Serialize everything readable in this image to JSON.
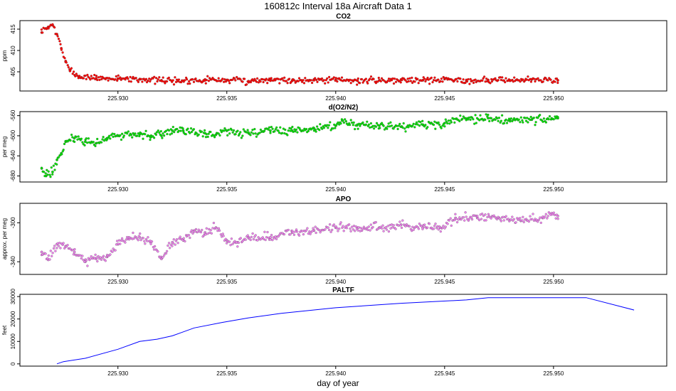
{
  "title": "160812c   Interval 18a Aircraft Data 1",
  "xlabel": "day of year",
  "chart_data": [
    {
      "type": "scatter",
      "title": "CO2",
      "ylabel": "ppm",
      "color": "#ff0000",
      "xlim": [
        225.9255,
        225.9552
      ],
      "ylim": [
        400.5,
        417
      ],
      "xticks": [
        "225.930",
        "225.935",
        "225.940",
        "225.945",
        "225.950"
      ],
      "yticks": [
        "405",
        "410",
        "415"
      ],
      "points": [
        [
          225.9265,
          414.2
        ],
        [
          225.9268,
          415.5
        ],
        [
          225.927,
          416.0
        ],
        [
          225.9272,
          413.8
        ],
        [
          225.9274,
          410.5
        ],
        [
          225.9276,
          407.5
        ],
        [
          225.9278,
          405.2
        ],
        [
          225.9282,
          403.9
        ],
        [
          225.929,
          403.5
        ],
        [
          225.93,
          403.4
        ],
        [
          225.931,
          403.3
        ],
        [
          225.932,
          403.0
        ],
        [
          225.933,
          402.9
        ],
        [
          225.934,
          403.2
        ],
        [
          225.935,
          403.1
        ],
        [
          225.936,
          402.8
        ],
        [
          225.937,
          403.3
        ],
        [
          225.938,
          402.9
        ],
        [
          225.939,
          403.2
        ],
        [
          225.94,
          403.1
        ],
        [
          225.941,
          402.9
        ],
        [
          225.942,
          403.0
        ],
        [
          225.943,
          403.2
        ],
        [
          225.944,
          403.0
        ],
        [
          225.945,
          403.3
        ],
        [
          225.946,
          402.9
        ],
        [
          225.947,
          403.1
        ],
        [
          225.948,
          403.0
        ],
        [
          225.949,
          403.2
        ],
        [
          225.9502,
          403.0
        ]
      ]
    },
    {
      "type": "scatter",
      "title": "d(O2/N2)",
      "ylabel": "per meg",
      "color": "#00e000",
      "xlim": [
        225.9255,
        225.9552
      ],
      "ylim": [
        -692,
        -552
      ],
      "xticks": [
        "225.930",
        "225.935",
        "225.940",
        "225.945",
        "225.950"
      ],
      "yticks": [
        "-680",
        "-640",
        "-600",
        "-560"
      ],
      "points": [
        [
          225.9265,
          -665
        ],
        [
          225.9267,
          -680
        ],
        [
          225.927,
          -672
        ],
        [
          225.9272,
          -648
        ],
        [
          225.9274,
          -635
        ],
        [
          225.9276,
          -612
        ],
        [
          225.928,
          -605
        ],
        [
          225.9285,
          -612
        ],
        [
          225.929,
          -615
        ],
        [
          225.9295,
          -605
        ],
        [
          225.93,
          -600
        ],
        [
          225.931,
          -597
        ],
        [
          225.9315,
          -603
        ],
        [
          225.932,
          -600
        ],
        [
          225.9325,
          -590
        ],
        [
          225.933,
          -590
        ],
        [
          225.934,
          -595
        ],
        [
          225.9345,
          -598
        ],
        [
          225.935,
          -590
        ],
        [
          225.936,
          -595
        ],
        [
          225.937,
          -590
        ],
        [
          225.938,
          -590
        ],
        [
          225.939,
          -585
        ],
        [
          225.94,
          -580
        ],
        [
          225.9403,
          -570
        ],
        [
          225.941,
          -578
        ],
        [
          225.942,
          -580
        ],
        [
          225.943,
          -582
        ],
        [
          225.944,
          -578
        ],
        [
          225.945,
          -575
        ],
        [
          225.946,
          -567
        ],
        [
          225.947,
          -565
        ],
        [
          225.948,
          -570
        ],
        [
          225.949,
          -568
        ],
        [
          225.9502,
          -565
        ]
      ]
    },
    {
      "type": "scatter",
      "title": "APO",
      "ylabel": "approx. per meg",
      "color": "#ee82ee",
      "xlim": [
        225.9255,
        225.9552
      ],
      "ylim": [
        -353,
        -280
      ],
      "xticks": [
        "225.930",
        "225.935",
        "225.940",
        "225.945",
        "225.950"
      ],
      "yticks": [
        "-340",
        "-300"
      ],
      "points": [
        [
          225.9265,
          -330
        ],
        [
          225.9268,
          -338
        ],
        [
          225.9272,
          -322
        ],
        [
          225.9276,
          -324
        ],
        [
          225.928,
          -330
        ],
        [
          225.9285,
          -340
        ],
        [
          225.929,
          -337
        ],
        [
          225.9295,
          -335
        ],
        [
          225.93,
          -322
        ],
        [
          225.9305,
          -315
        ],
        [
          225.931,
          -315
        ],
        [
          225.9315,
          -320
        ],
        [
          225.932,
          -337
        ],
        [
          225.9325,
          -320
        ],
        [
          225.933,
          -318
        ],
        [
          225.9335,
          -308
        ],
        [
          225.934,
          -310
        ],
        [
          225.9345,
          -305
        ],
        [
          225.935,
          -318
        ],
        [
          225.9355,
          -320
        ],
        [
          225.936,
          -315
        ],
        [
          225.937,
          -315
        ],
        [
          225.938,
          -310
        ],
        [
          225.939,
          -308
        ],
        [
          225.94,
          -305
        ],
        [
          225.941,
          -305
        ],
        [
          225.942,
          -305
        ],
        [
          225.943,
          -302
        ],
        [
          225.944,
          -305
        ],
        [
          225.9448,
          -305
        ],
        [
          225.9455,
          -295
        ],
        [
          225.9465,
          -295
        ],
        [
          225.9475,
          -295
        ],
        [
          225.9485,
          -298
        ],
        [
          225.9495,
          -295
        ],
        [
          225.9502,
          -293
        ]
      ]
    },
    {
      "type": "line",
      "title": "PALTF",
      "ylabel": "feet",
      "color": "#0000ff",
      "xlim": [
        225.9255,
        225.9552
      ],
      "ylim": [
        -1000,
        31000
      ],
      "xticks": [
        "225.930",
        "225.935",
        "225.940",
        "225.945",
        "225.950"
      ],
      "yticks": [
        "0",
        "10000",
        "20000",
        "30000"
      ],
      "points": [
        [
          225.9272,
          0
        ],
        [
          225.9275,
          1000
        ],
        [
          225.9285,
          2500
        ],
        [
          225.93,
          6500
        ],
        [
          225.931,
          10000
        ],
        [
          225.9318,
          11000
        ],
        [
          225.9325,
          12500
        ],
        [
          225.9335,
          16000
        ],
        [
          225.9348,
          18500
        ],
        [
          225.936,
          20500
        ],
        [
          225.9375,
          22500
        ],
        [
          225.94,
          25000
        ],
        [
          225.943,
          27000
        ],
        [
          225.946,
          28500
        ],
        [
          225.947,
          29500
        ],
        [
          225.9515,
          29500
        ],
        [
          225.9537,
          24000
        ]
      ]
    }
  ]
}
